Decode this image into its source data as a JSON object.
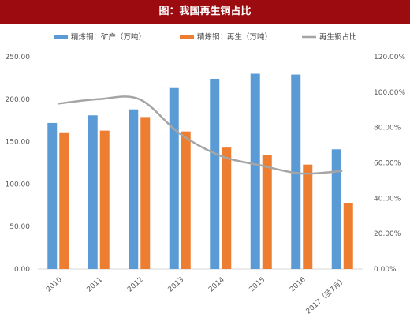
{
  "title": "图：我国再生铜占比",
  "colors": {
    "banner": "#9c0b0f",
    "primary": "#5b9bd5",
    "recycled": "#ed7d31",
    "share": "#a5a5a5"
  },
  "chart_data": {
    "type": "bar",
    "categories": [
      "2010",
      "2011",
      "2012",
      "2013",
      "2014",
      "2015",
      "2016",
      "2017（至7月）"
    ],
    "series": [
      {
        "name": "精炼铜：矿产（万吨）",
        "type": "bar",
        "axis": "left",
        "values": [
          172,
          181,
          188,
          214,
          224,
          230,
          229,
          141
        ]
      },
      {
        "name": "精炼铜：再生（万吨）",
        "type": "bar",
        "axis": "left",
        "values": [
          161,
          163,
          179,
          162,
          143,
          134,
          123,
          78
        ]
      },
      {
        "name": "再生铜占比",
        "type": "line",
        "axis": "right",
        "values": [
          0.935,
          0.96,
          0.96,
          0.765,
          0.64,
          0.585,
          0.54,
          0.555
        ]
      }
    ],
    "yticks_left": [
      "0.00",
      "50.00",
      "100.00",
      "150.00",
      "200.00",
      "250.00"
    ],
    "yticks_right": [
      "0.00%",
      "20.00%",
      "40.00%",
      "60.00%",
      "80.00%",
      "100.00%",
      "120.00%"
    ],
    "ylim_left": [
      0,
      250
    ],
    "ylim_right": [
      0,
      1.2
    ],
    "grid": false,
    "legend_position": "top"
  }
}
